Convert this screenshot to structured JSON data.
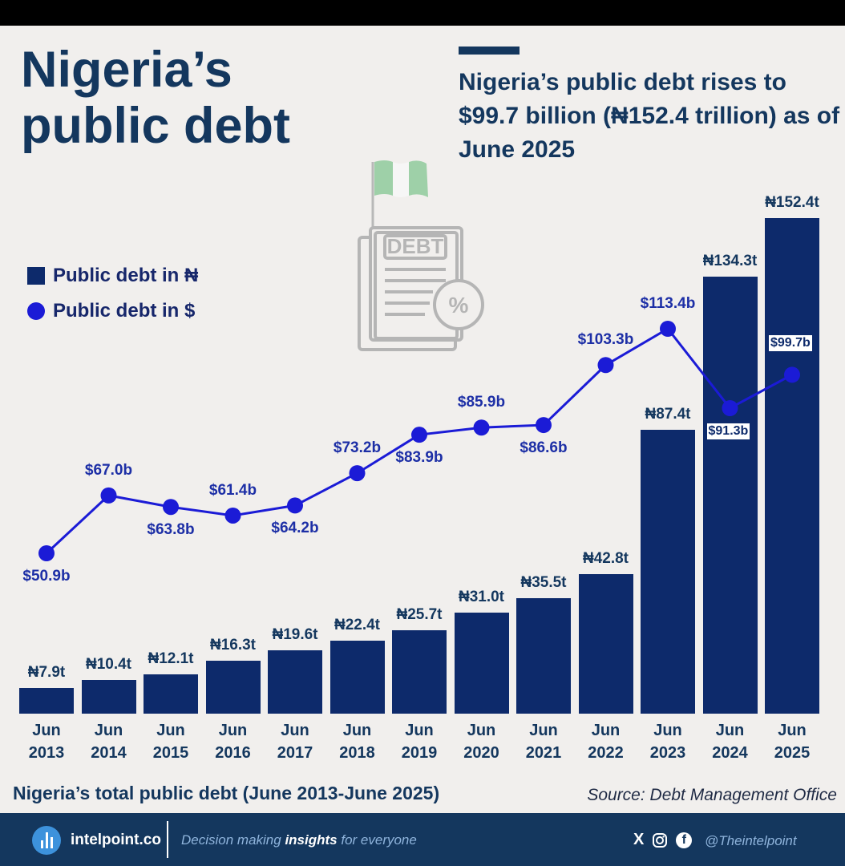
{
  "title": {
    "line1": "Nigeria’s",
    "line2": "public debt"
  },
  "subtitle": "Nigeria’s public debt rises to $99.7 billion (₦152.4 trillion) as of June 2025",
  "illustration": {
    "icon": "debt-document-icon",
    "flag": "nigeria-flag-icon",
    "doc_label": "DEBT",
    "percent": "%"
  },
  "legend": {
    "naira": "Public debt in ₦",
    "usd": "Public debt in $"
  },
  "colors": {
    "bar": "#0d2a6b",
    "line": "#1b1bd6",
    "title": "#14375e",
    "footer": "#14375e",
    "background": "#f1efed"
  },
  "chart_data": {
    "type": "bar",
    "title": "Nigeria’s total public debt (June 2013-June 2025)",
    "categories": [
      [
        "Jun",
        "2013"
      ],
      [
        "Jun",
        "2014"
      ],
      [
        "Jun",
        "2015"
      ],
      [
        "Jun",
        "2016"
      ],
      [
        "Jun",
        "2017"
      ],
      [
        "Jun",
        "2018"
      ],
      [
        "Jun",
        "2019"
      ],
      [
        "Jun",
        "2020"
      ],
      [
        "Jun",
        "2021"
      ],
      [
        "Jun",
        "2022"
      ],
      [
        "Jun",
        "2023"
      ],
      [
        "Jun",
        "2024"
      ],
      [
        "Jun",
        "2025"
      ]
    ],
    "series": [
      {
        "name": "Public debt in ₦",
        "type": "bar",
        "unit": "trillion naira",
        "values": [
          7.9,
          10.4,
          12.1,
          16.3,
          19.6,
          22.4,
          25.7,
          31.0,
          35.5,
          42.8,
          87.4,
          134.3,
          152.4
        ],
        "labels": [
          "₦7.9t",
          "₦10.4t",
          "₦12.1t",
          "₦16.3t",
          "₦19.6t",
          "₦22.4t",
          "₦25.7t",
          "₦31.0t",
          "₦35.5t",
          "₦42.8t",
          "₦87.4t",
          "₦134.3t",
          "₦152.4t"
        ]
      },
      {
        "name": "Public debt in $",
        "type": "line",
        "unit": "billion USD",
        "values": [
          50.9,
          67.0,
          63.8,
          61.4,
          64.2,
          73.2,
          83.9,
          85.9,
          86.6,
          103.3,
          113.4,
          91.3,
          99.7
        ],
        "labels": [
          "$50.9b",
          "$67.0b",
          "$63.8b",
          "$61.4b",
          "$64.2b",
          "$73.2b",
          "$83.9b",
          "$85.9b",
          "$86.6b",
          "$103.3b",
          "$113.4b",
          "$91.3b",
          "$99.7b"
        ]
      }
    ],
    "ylim_naira": [
      0,
      152.4
    ],
    "ylim_usd": [
      50.9,
      113.4
    ]
  },
  "caption": "Nigeria’s total public debt (June 2013-June 2025)",
  "source": "Source: Debt Management Office",
  "footer": {
    "brand": "intelpoint.co",
    "tagline_before": "Decision making ",
    "tagline_bold": "insights",
    "tagline_after": " for everyone",
    "social_icons": [
      "x-icon",
      "instagram-icon",
      "facebook-icon"
    ],
    "social_x": "X",
    "social_fb": "f",
    "handle": "@Theintelpoint"
  }
}
